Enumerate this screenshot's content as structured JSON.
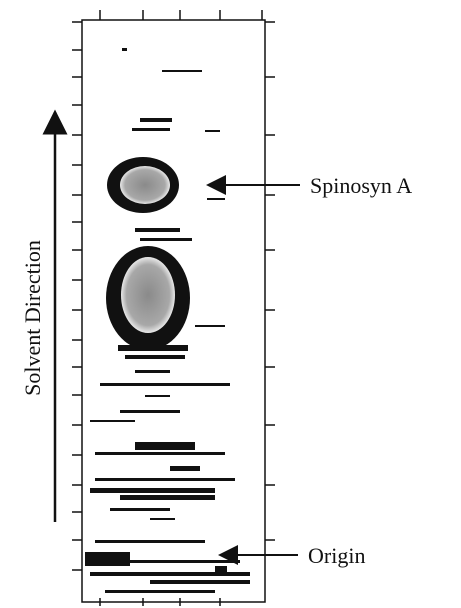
{
  "annotations": {
    "spot_label": "Spinosyn A",
    "origin_label": "Origin",
    "axis_label": "Solvent Direction"
  }
}
